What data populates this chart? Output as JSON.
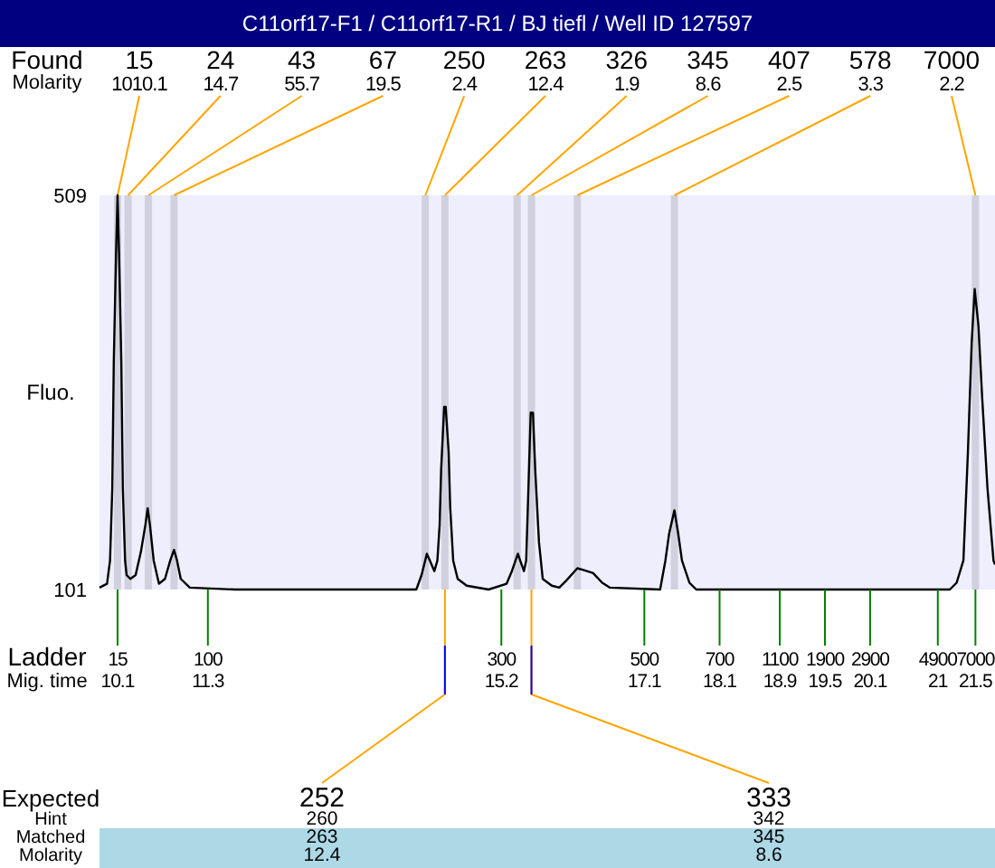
{
  "chart_data": {
    "type": "line",
    "title": "C11orf17-F1 / C11orf17-R1 / BJ tiefl / Well ID 127597",
    "ylabel": "Fluo.",
    "xlim": [
      9.86,
      21.76
    ],
    "ylim": [
      101,
      509
    ],
    "yticks": [
      101,
      509
    ],
    "xticks": [
      10.1,
      11.3,
      15.2,
      17.1,
      18.1,
      18.9,
      19.5,
      20.1,
      21,
      21.5
    ],
    "grid": false,
    "series": [
      {
        "color": "#000000",
        "x": [
          9.86,
          9.96,
          10.0,
          10.03,
          10.05,
          10.08,
          10.1,
          10.12,
          10.15,
          10.17,
          10.2,
          10.22,
          10.27,
          10.34,
          10.41,
          10.47,
          10.5,
          10.53,
          10.58,
          10.65,
          10.73,
          10.8,
          10.85,
          10.89,
          10.94,
          11.06,
          11.66,
          14.07,
          14.14,
          14.21,
          14.25,
          14.31,
          14.35,
          14.38,
          14.4,
          14.44,
          14.46,
          14.5,
          14.52,
          14.56,
          14.62,
          14.74,
          15.03,
          15.27,
          15.34,
          15.42,
          15.45,
          15.5,
          15.53,
          15.56,
          15.59,
          15.62,
          15.65,
          15.7,
          15.75,
          15.87,
          15.97,
          16.06,
          16.21,
          16.3,
          16.42,
          16.54,
          16.64,
          17.31,
          17.38,
          17.43,
          17.5,
          17.55,
          17.6,
          17.7,
          17.79,
          21.16,
          21.25,
          21.34,
          21.4,
          21.45,
          21.49,
          21.54,
          21.59,
          21.66,
          21.74,
          21.76
        ],
        "values": [
          103,
          107,
          131,
          206,
          337,
          449,
          509,
          449,
          337,
          206,
          131,
          116,
          112,
          116,
          140,
          168,
          185,
          168,
          131,
          107,
          112,
          131,
          142,
          131,
          112,
          103,
          101,
          101,
          116,
          138,
          131,
          120,
          131,
          168,
          225,
          290,
          290,
          243,
          187,
          131,
          112,
          105,
          101,
          107,
          120,
          138,
          131,
          120,
          131,
          206,
          284,
          284,
          225,
          150,
          112,
          105,
          103,
          110,
          123,
          121,
          118,
          108,
          103,
          101,
          131,
          159,
          183,
          159,
          131,
          108,
          101,
          101,
          108,
          131,
          243,
          356,
          412,
          374,
          299,
          206,
          131,
          127
        ]
      }
    ],
    "ref_lines": [
      {
        "axis": "x",
        "value": 10.1,
        "color": "#d0d0de"
      },
      {
        "axis": "x",
        "value": 10.24,
        "color": "#d0d0de"
      },
      {
        "axis": "x",
        "value": 10.51,
        "color": "#d0d0de"
      },
      {
        "axis": "x",
        "value": 10.85,
        "color": "#d0d0de"
      },
      {
        "axis": "x",
        "value": 14.19,
        "color": "#d0d0de"
      },
      {
        "axis": "x",
        "value": 14.45,
        "color": "#d0d0de"
      },
      {
        "axis": "x",
        "value": 15.41,
        "color": "#d0d0de"
      },
      {
        "axis": "x",
        "value": 15.6,
        "color": "#d0d0de"
      },
      {
        "axis": "x",
        "value": 16.21,
        "color": "#d0d0de"
      },
      {
        "axis": "x",
        "value": 17.5,
        "color": "#d0d0de"
      },
      {
        "axis": "x",
        "value": 21.5,
        "color": "#d0d0de"
      }
    ],
    "annotations": [
      "Found",
      "Molarity",
      "Ladder",
      "Mig. time",
      "Expected",
      "Hint",
      "Matched",
      "Molarity",
      {
        "text": "15",
        "x": 10.1,
        "y": 509
      },
      {
        "text": "24",
        "x": 10.24,
        "y": 509
      },
      {
        "text": "43",
        "x": 10.51,
        "y": 509
      },
      {
        "text": "67",
        "x": 10.85,
        "y": 509
      },
      {
        "text": "250",
        "x": 14.19,
        "y": 509
      },
      {
        "text": "263",
        "x": 14.45,
        "y": 509
      },
      {
        "text": "326",
        "x": 15.41,
        "y": 509
      },
      {
        "text": "345",
        "x": 15.6,
        "y": 509
      },
      {
        "text": "407",
        "x": 16.21,
        "y": 509
      },
      {
        "text": "578",
        "x": 17.5,
        "y": 509
      },
      {
        "text": "7000",
        "x": 21.5,
        "y": 509
      },
      "1010.1",
      "14.7",
      "55.7",
      "19.5",
      "2.4",
      "12.4",
      "1.9",
      "8.6",
      "2.5",
      "3.3",
      "2.2",
      {
        "text": "15",
        "x": 10.1,
        "y": 101
      },
      {
        "text": "100",
        "x": 11.3,
        "y": 101
      },
      {
        "text": "300",
        "x": 15.2,
        "y": 101
      },
      {
        "text": "500",
        "x": 17.1,
        "y": 101
      },
      {
        "text": "700",
        "x": 18.1,
        "y": 101
      },
      {
        "text": "1100",
        "x": 18.9,
        "y": 101
      },
      {
        "text": "1900",
        "x": 19.5,
        "y": 101
      },
      {
        "text": "2900",
        "x": 20.1,
        "y": 101
      },
      {
        "text": "4900",
        "x": 21,
        "y": 101
      },
      {
        "text": "7000",
        "x": 21.5,
        "y": 101
      },
      {
        "text": "252",
        "x": 14.45,
        "y": 101
      },
      "260",
      "263",
      "12.4",
      {
        "text": "333",
        "x": 15.6,
        "y": 101
      },
      "342",
      "345",
      "8.6"
    ]
  }
}
